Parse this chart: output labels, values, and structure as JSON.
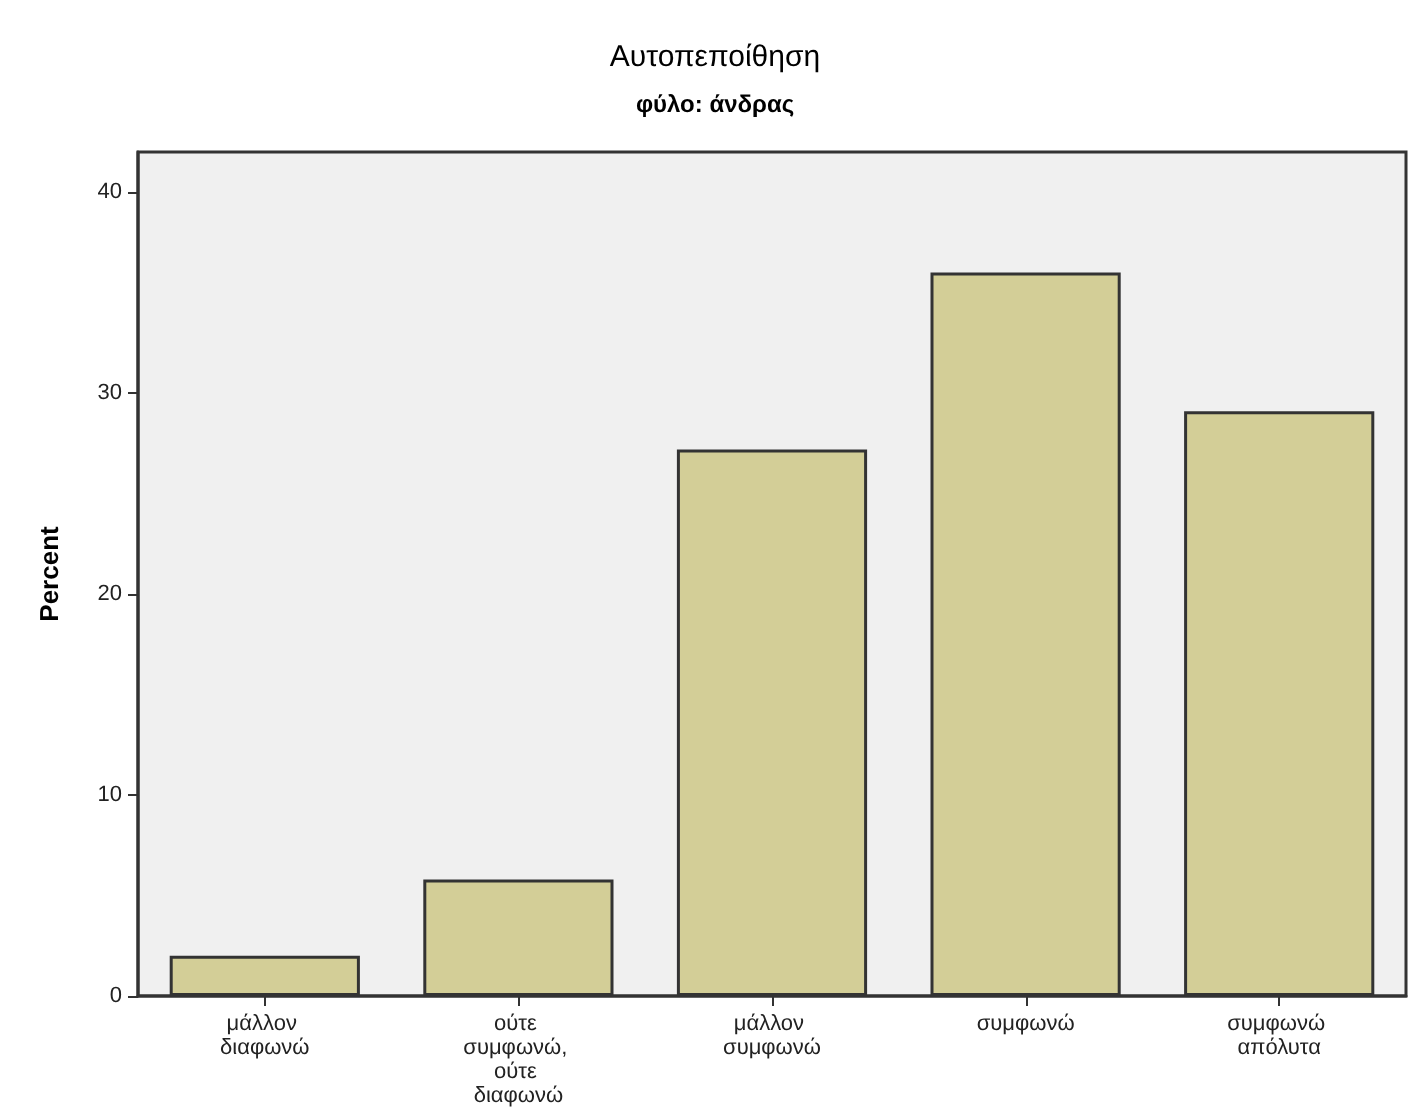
{
  "chart_data": {
    "type": "bar",
    "title": "Αυτοπεποίθηση",
    "subtitle": "φύλο: άνδρας",
    "ylabel": "Percent",
    "categories": [
      "μάλλον διαφωνώ",
      "ούτε συμφωνώ, ούτε διαφωνώ",
      "μάλλον συμφωνώ",
      "συμφωνώ",
      "συμφωνώ απόλυτα"
    ],
    "values": [
      2.0,
      5.8,
      27.2,
      36.0,
      29.1
    ],
    "color": "#d3ce97",
    "ylim": [
      0,
      42
    ],
    "yticks": [
      0,
      10,
      20,
      30,
      40
    ],
    "grid": false
  }
}
